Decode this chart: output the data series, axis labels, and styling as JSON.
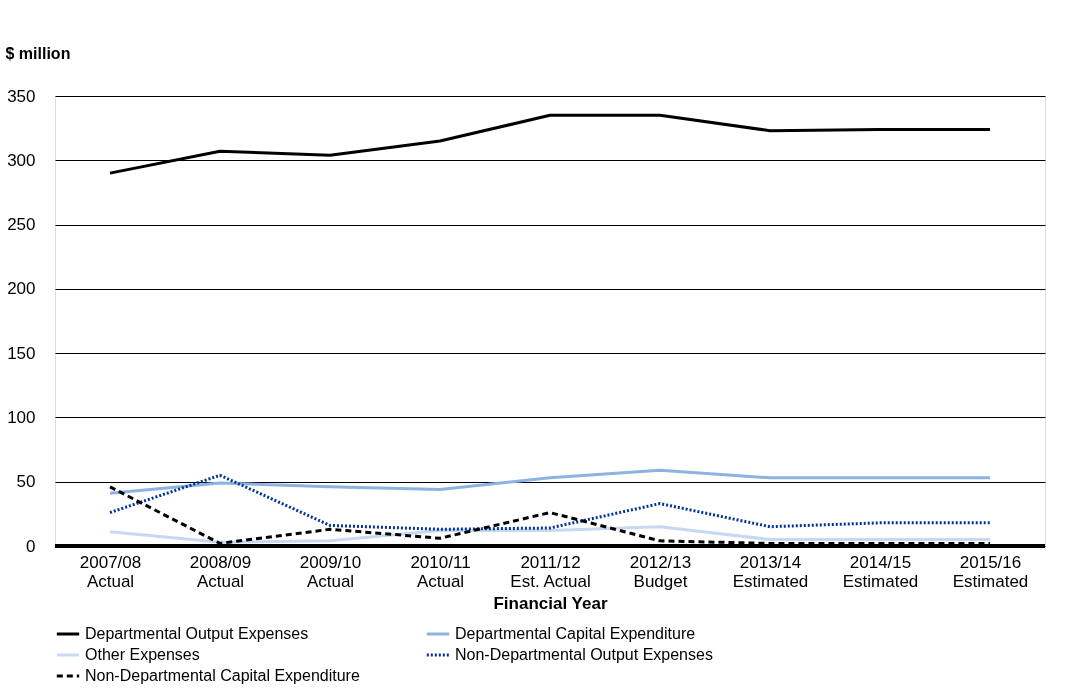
{
  "chart_data": {
    "type": "line",
    "ylabel": "$ million",
    "xlabel": "Financial Year",
    "categories": [
      "2007/08\nActual",
      "2008/09\nActual",
      "2009/10\nActual",
      "2010/11\nActual",
      "2011/12\nEst. Actual",
      "2012/13\nBudget",
      "2013/14\nEstimated",
      "2014/15\nEstimated",
      "2015/16\nEstimated"
    ],
    "ylim": [
      0,
      350
    ],
    "yticks": [
      0,
      50,
      100,
      150,
      200,
      250,
      300,
      350
    ],
    "grid": "y",
    "legend": "bottom",
    "marker": "none",
    "series": [
      {
        "name": "Departmental Output Expenses",
        "color": "#000000",
        "line_style": "solid",
        "values": [
          290,
          307,
          304,
          315,
          335,
          335,
          323,
          324,
          324
        ]
      },
      {
        "name": "Departmental Capital Expenditure",
        "color": "#8db3e2",
        "line_style": "solid",
        "values": [
          41,
          49,
          46,
          44,
          53,
          59,
          53,
          53,
          53
        ]
      },
      {
        "name": "Other Expenses",
        "color": "#c6d9f1",
        "line_style": "solid",
        "values": [
          11,
          3,
          4,
          12,
          12,
          15,
          5,
          5,
          5
        ]
      },
      {
        "name": "Non-Departmental Output Expenses",
        "color": "#003399",
        "line_style": "dotted",
        "values": [
          26,
          55,
          16,
          13,
          14,
          33,
          15,
          18,
          18
        ]
      },
      {
        "name": "Non-Departmental Capital Expenditure",
        "color": "#000000",
        "line_style": "dashed",
        "values": [
          46,
          2,
          13,
          6,
          26,
          4,
          2,
          2,
          2
        ]
      }
    ]
  }
}
